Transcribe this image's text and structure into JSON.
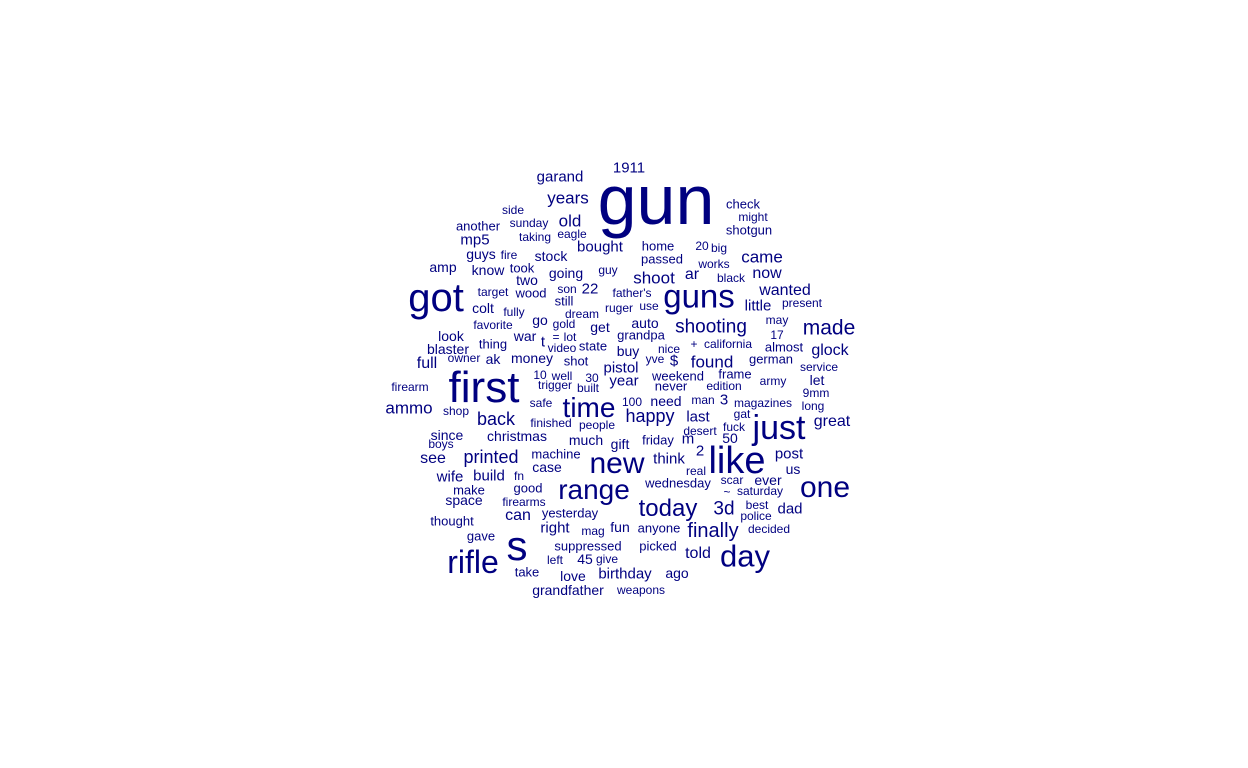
{
  "style": {
    "text_color": "#000080",
    "background": "#ffffff"
  },
  "words": [
    {
      "text": "gun",
      "weight": 70
    },
    {
      "text": "got",
      "weight": 40
    },
    {
      "text": "first",
      "weight": 44
    },
    {
      "text": "s",
      "weight": 42
    },
    {
      "text": "like",
      "weight": 38
    },
    {
      "text": "rifle",
      "weight": 32
    },
    {
      "text": "guns",
      "weight": 33
    },
    {
      "text": "just",
      "weight": 34
    },
    {
      "text": "new",
      "weight": 30
    },
    {
      "text": "day",
      "weight": 31
    },
    {
      "text": "one",
      "weight": 30
    },
    {
      "text": "range",
      "weight": 28
    },
    {
      "text": "time",
      "weight": 28
    },
    {
      "text": "today",
      "weight": 24
    },
    {
      "text": "made",
      "weight": 21
    },
    {
      "text": "finally",
      "weight": 20
    },
    {
      "text": "shooting",
      "weight": 19
    },
    {
      "text": "printed",
      "weight": 18
    },
    {
      "text": "back",
      "weight": 18
    },
    {
      "text": "happy",
      "weight": 18
    },
    {
      "text": "ammo",
      "weight": 17
    },
    {
      "text": "years",
      "weight": 17
    },
    {
      "text": "old",
      "weight": 17
    },
    {
      "text": "3d",
      "weight": 19
    },
    {
      "text": "found",
      "weight": 17
    },
    {
      "text": "shoot",
      "weight": 17
    },
    {
      "text": "came",
      "weight": 17
    },
    {
      "text": "now",
      "weight": 16
    },
    {
      "text": "glock",
      "weight": 16
    },
    {
      "text": "wanted",
      "weight": 16
    },
    {
      "text": "told",
      "weight": 16
    },
    {
      "text": "great",
      "weight": 16
    },
    {
      "text": "see",
      "weight": 16
    },
    {
      "text": "full",
      "weight": 16
    },
    {
      "text": "can",
      "weight": 16
    },
    {
      "text": "post",
      "weight": 15
    },
    {
      "text": "dad",
      "weight": 15
    },
    {
      "text": "1911",
      "weight": 15
    },
    {
      "text": "garand",
      "weight": 15
    },
    {
      "text": "bought",
      "weight": 15
    },
    {
      "text": "ar",
      "weight": 16
    },
    {
      "text": "22",
      "weight": 15
    },
    {
      "text": "little",
      "weight": 15
    },
    {
      "text": "pistol",
      "weight": 15
    },
    {
      "text": "year",
      "weight": 15
    },
    {
      "text": "think",
      "weight": 15
    },
    {
      "text": "build",
      "weight": 15
    },
    {
      "text": "right",
      "weight": 15
    },
    {
      "text": "birthday",
      "weight": 15
    },
    {
      "text": "wife",
      "weight": 15
    },
    {
      "text": "mp5",
      "weight": 15
    },
    {
      "text": "going",
      "weight": 14
    },
    {
      "text": "buy",
      "weight": 14
    },
    {
      "text": "last",
      "weight": 15
    },
    {
      "text": "$",
      "weight": 15
    },
    {
      "text": "guys",
      "weight": 14
    },
    {
      "text": "amp",
      "weight": 14
    },
    {
      "text": "know",
      "weight": 14
    },
    {
      "text": "two",
      "weight": 14
    },
    {
      "text": "colt",
      "weight": 14
    },
    {
      "text": "stock",
      "weight": 14
    },
    {
      "text": "wood",
      "weight": 13
    },
    {
      "text": "war",
      "weight": 14
    },
    {
      "text": "go",
      "weight": 14
    },
    {
      "text": "get",
      "weight": 14
    },
    {
      "text": "auto",
      "weight": 14
    },
    {
      "text": "look",
      "weight": 14
    },
    {
      "text": "money",
      "weight": 14
    },
    {
      "text": "ak",
      "weight": 14
    },
    {
      "text": "since",
      "weight": 14
    },
    {
      "text": "christmas",
      "weight": 14
    },
    {
      "text": "gift",
      "weight": 14
    },
    {
      "text": "much",
      "weight": 14
    },
    {
      "text": "case",
      "weight": 14
    },
    {
      "text": "space",
      "weight": 14
    },
    {
      "text": "need",
      "weight": 14
    },
    {
      "text": "fun",
      "weight": 14
    },
    {
      "text": "love",
      "weight": 14
    },
    {
      "text": "ago",
      "weight": 14
    },
    {
      "text": "let",
      "weight": 14
    },
    {
      "text": "us",
      "weight": 14
    },
    {
      "text": "ever",
      "weight": 14
    },
    {
      "text": "blaster",
      "weight": 14
    },
    {
      "text": "t",
      "weight": 15
    },
    {
      "text": "50",
      "weight": 14
    },
    {
      "text": "3",
      "weight": 15
    },
    {
      "text": "2",
      "weight": 15
    },
    {
      "text": "m",
      "weight": 15
    },
    {
      "text": "45",
      "weight": 14
    },
    {
      "text": "home",
      "weight": 13
    },
    {
      "text": "passed",
      "weight": 13
    },
    {
      "text": "friday",
      "weight": 13
    },
    {
      "text": "grandpa",
      "weight": 13
    },
    {
      "text": "weekend",
      "weight": 13
    },
    {
      "text": "never",
      "weight": 13
    },
    {
      "text": "grandfather",
      "weight": 14
    },
    {
      "text": "picked",
      "weight": 13
    },
    {
      "text": "take",
      "weight": 13
    },
    {
      "text": "suppressed",
      "weight": 13
    },
    {
      "text": "yesterday",
      "weight": 13
    },
    {
      "text": "good",
      "weight": 13
    },
    {
      "text": "make",
      "weight": 13
    },
    {
      "text": "thought",
      "weight": 13
    },
    {
      "text": "gave",
      "weight": 13
    },
    {
      "text": "machine",
      "weight": 13
    },
    {
      "text": "shotgun",
      "weight": 13
    },
    {
      "text": "anyone",
      "weight": 13
    },
    {
      "text": "wednesday",
      "weight": 13
    },
    {
      "text": "frame",
      "weight": 13
    },
    {
      "text": "army",
      "weight": 12
    },
    {
      "text": "service",
      "weight": 12
    },
    {
      "text": "another",
      "weight": 13
    },
    {
      "text": "firearm",
      "weight": 12
    },
    {
      "text": "well",
      "weight": 12
    },
    {
      "text": "shot",
      "weight": 13
    },
    {
      "text": "people",
      "weight": 12
    },
    {
      "text": "state",
      "weight": 13
    },
    {
      "text": "thing",
      "weight": 13
    },
    {
      "text": "german",
      "weight": 13
    },
    {
      "text": "almost",
      "weight": 13
    },
    {
      "text": "california",
      "weight": 12
    },
    {
      "text": "sunday",
      "weight": 12
    },
    {
      "text": "side",
      "weight": 12
    },
    {
      "text": "taking",
      "weight": 12
    },
    {
      "text": "eagle",
      "weight": 12
    },
    {
      "text": "fire",
      "weight": 12
    },
    {
      "text": "took",
      "weight": 13
    },
    {
      "text": "guy",
      "weight": 12
    },
    {
      "text": "20",
      "weight": 12
    },
    {
      "text": "big",
      "weight": 12
    },
    {
      "text": "works",
      "weight": 12
    },
    {
      "text": "black",
      "weight": 12
    },
    {
      "text": "check",
      "weight": 13
    },
    {
      "text": "might",
      "weight": 12
    },
    {
      "text": "present",
      "weight": 12
    },
    {
      "text": "may",
      "weight": 12
    },
    {
      "text": "17",
      "weight": 12
    },
    {
      "text": "target",
      "weight": 12
    },
    {
      "text": "son",
      "weight": 12
    },
    {
      "text": "still",
      "weight": 13
    },
    {
      "text": "father's",
      "weight": 12
    },
    {
      "text": "ruger",
      "weight": 12
    },
    {
      "text": "use",
      "weight": 12
    },
    {
      "text": "fully",
      "weight": 12
    },
    {
      "text": "dream",
      "weight": 12
    },
    {
      "text": "favorite",
      "weight": 12
    },
    {
      "text": "gold",
      "weight": 12
    },
    {
      "text": "=",
      "weight": 12
    },
    {
      "text": "lot",
      "weight": 12
    },
    {
      "text": "video",
      "weight": 12
    },
    {
      "text": "nice",
      "weight": 12
    },
    {
      "text": "yve",
      "weight": 12
    },
    {
      "text": "+",
      "weight": 12
    },
    {
      "text": "owner",
      "weight": 12
    },
    {
      "text": "10",
      "weight": 12
    },
    {
      "text": "30",
      "weight": 12
    },
    {
      "text": "trigger",
      "weight": 12
    },
    {
      "text": "built",
      "weight": 12
    },
    {
      "text": "edition",
      "weight": 12
    },
    {
      "text": "9mm",
      "weight": 12
    },
    {
      "text": "long",
      "weight": 12
    },
    {
      "text": "shop",
      "weight": 12
    },
    {
      "text": "safe",
      "weight": 12
    },
    {
      "text": "100",
      "weight": 12
    },
    {
      "text": "man",
      "weight": 12
    },
    {
      "text": "magazines",
      "weight": 12
    },
    {
      "text": "gat",
      "weight": 12
    },
    {
      "text": "fuck",
      "weight": 12
    },
    {
      "text": "finished",
      "weight": 12
    },
    {
      "text": "desert",
      "weight": 12
    },
    {
      "text": "boys",
      "weight": 12
    },
    {
      "text": "real",
      "weight": 12
    },
    {
      "text": "fn",
      "weight": 12
    },
    {
      "text": "scar",
      "weight": 12
    },
    {
      "text": "~",
      "weight": 12
    },
    {
      "text": "saturday",
      "weight": 12
    },
    {
      "text": "best",
      "weight": 12
    },
    {
      "text": "police",
      "weight": 12
    },
    {
      "text": "firearms",
      "weight": 12
    },
    {
      "text": "decided",
      "weight": 12
    },
    {
      "text": "mag",
      "weight": 12
    },
    {
      "text": "left",
      "weight": 12
    },
    {
      "text": "give",
      "weight": 12
    },
    {
      "text": "weapons",
      "weight": 12
    }
  ]
}
